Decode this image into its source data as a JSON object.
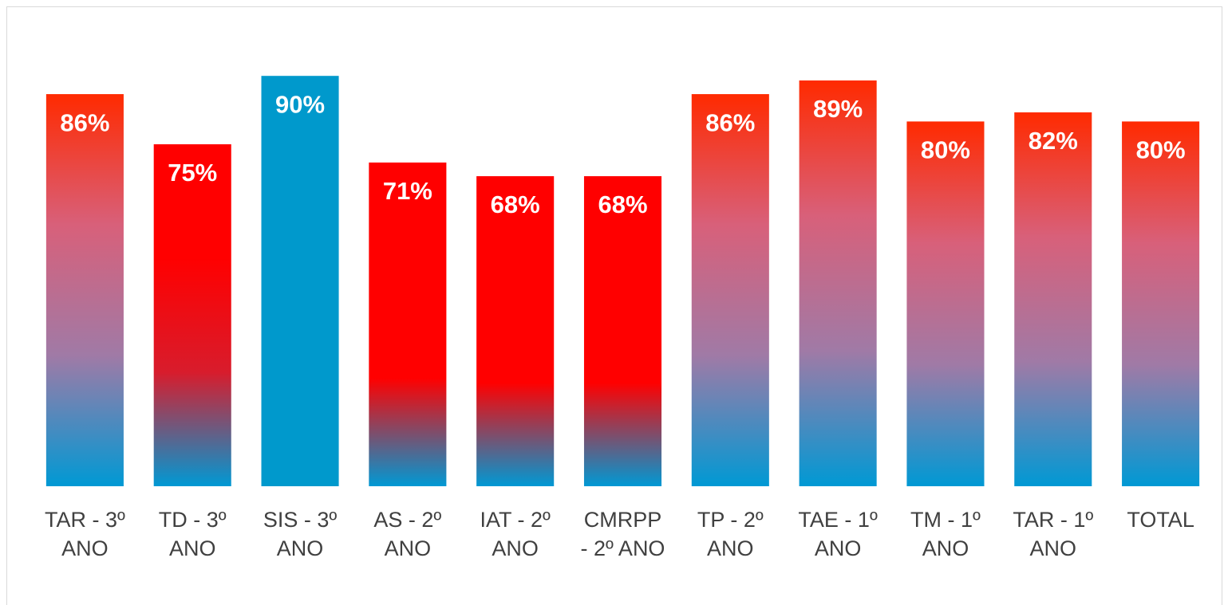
{
  "chart_data": {
    "type": "bar",
    "categories": [
      "TAR - 3º ANO",
      "TD - 3º ANO",
      "SIS - 3º ANO",
      "AS - 2º ANO",
      "IAT - 2º ANO",
      "CMRPP - 2º ANO",
      "TP - 2º ANO",
      "TAE - 1º ANO",
      "TM - 1º ANO",
      "TAR - 1º ANO",
      "TOTAL"
    ],
    "values": [
      86,
      75,
      90,
      71,
      68,
      68,
      86,
      89,
      80,
      82,
      80
    ],
    "value_labels": [
      "86%",
      "75%",
      "90%",
      "71%",
      "68%",
      "68%",
      "86%",
      "89%",
      "80%",
      "82%",
      "80%"
    ],
    "colors": [
      [
        "#ff2a00",
        "#d8607a",
        "#a07aa6",
        "#0099d4"
      ],
      [
        "#ff0000",
        "#ff0000",
        "#d81c2c",
        "#0099d4"
      ],
      [
        "#0099cc",
        "#0099cc"
      ],
      [
        "#ff0000",
        "#ff0000",
        "#ff0000",
        "#0099d4"
      ],
      [
        "#ff0000",
        "#ff0000",
        "#ff0000",
        "#0099d4"
      ],
      [
        "#ff0000",
        "#ff0000",
        "#ff0000",
        "#0099d4"
      ],
      [
        "#ff2a00",
        "#d8607a",
        "#a07aa6",
        "#0099d4"
      ],
      [
        "#ff2a00",
        "#d8607a",
        "#a07aa6",
        "#0099d4"
      ],
      [
        "#ff2a00",
        "#d8607a",
        "#a07aa6",
        "#0099d4"
      ],
      [
        "#ff2a00",
        "#d8607a",
        "#a07aa6",
        "#0099d4"
      ],
      [
        "#ff2a00",
        "#d8607a",
        "#a07aa6",
        "#0099d4"
      ]
    ],
    "ylim": [
      0,
      100
    ]
  }
}
